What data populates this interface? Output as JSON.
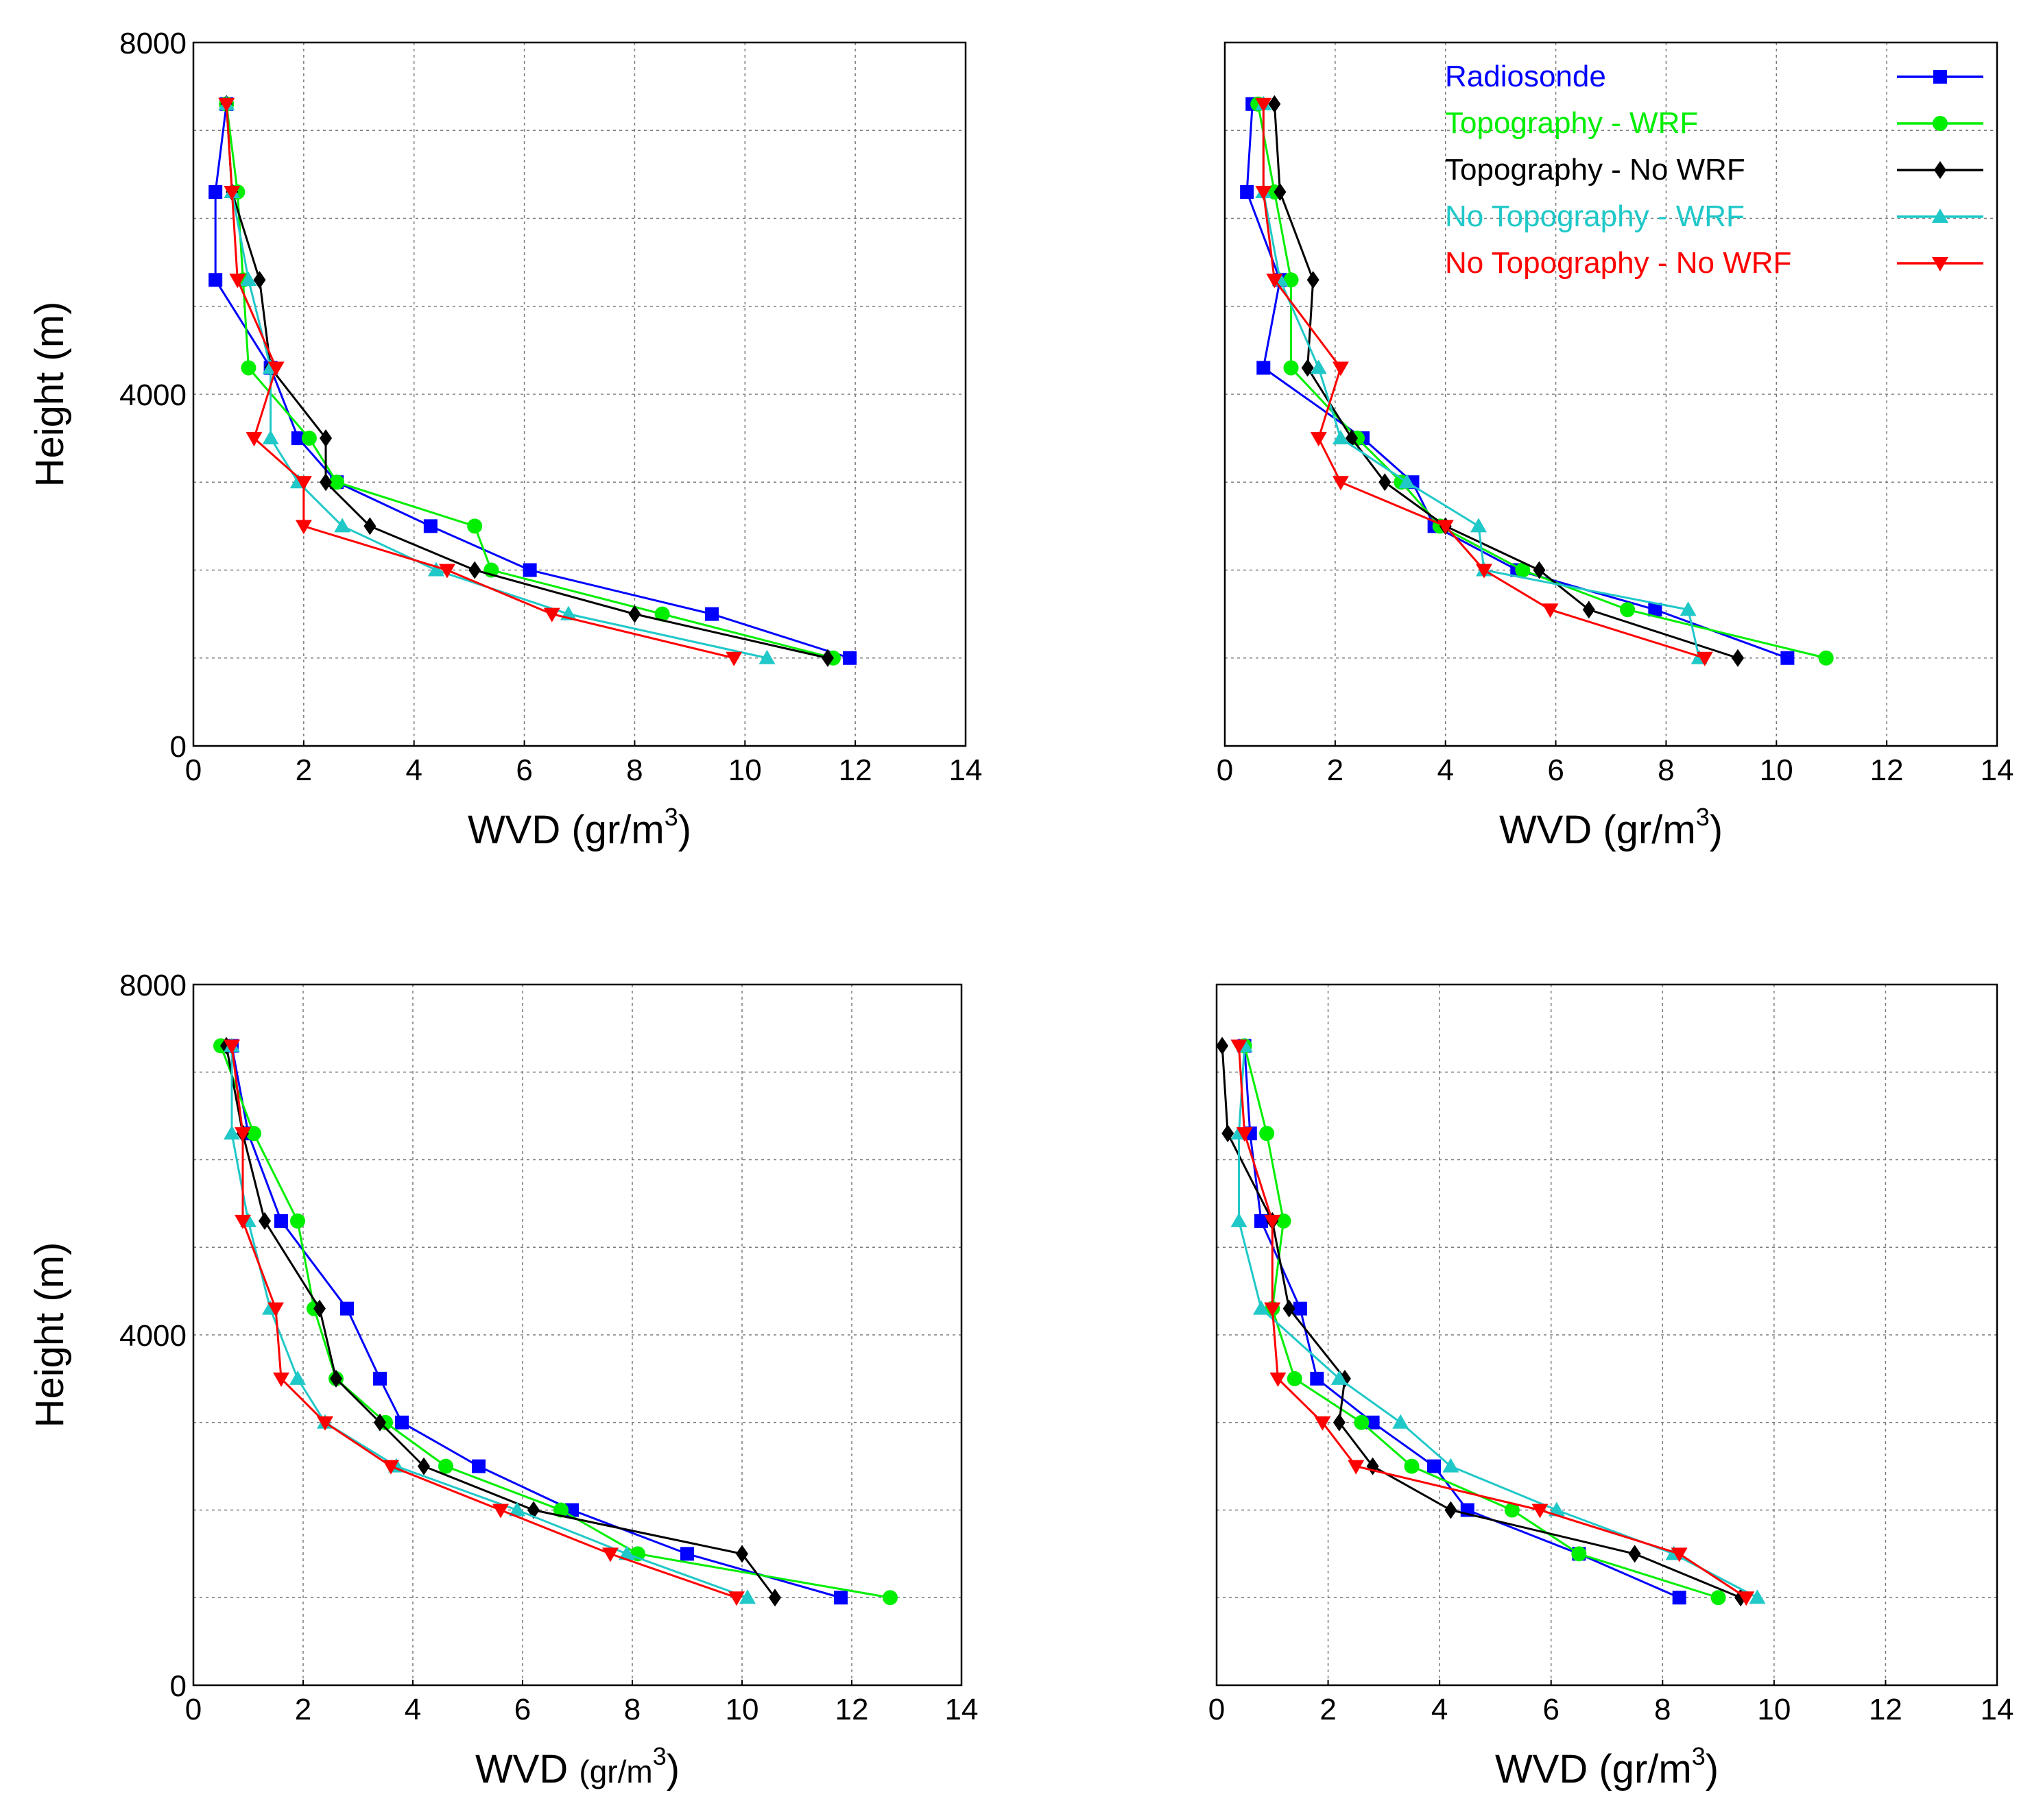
{
  "series_style": [
    {
      "name": "Radiosonde",
      "color": "#0000ff",
      "marker": "square"
    },
    {
      "name": "Topography - WRF",
      "color": "#00ee00",
      "marker": "circle"
    },
    {
      "name": "Topography - No WRF",
      "color": "#000000",
      "marker": "diamond"
    },
    {
      "name": "No Topography - WRF",
      "color": "#20c8c8",
      "marker": "triangle-up"
    },
    {
      "name": "No Topography - No WRF",
      "color": "#ff0000",
      "marker": "triangle-down"
    }
  ],
  "chart_data": [
    {
      "type": "line",
      "title": "",
      "xlabel": "WVD (gr/m",
      "xlabel_sup": "3",
      "xlabel_tail": ")",
      "ylabel": "Height (m)",
      "xlim": [
        0,
        14
      ],
      "ylim": [
        0,
        8000
      ],
      "xticks": [
        0,
        2,
        4,
        6,
        8,
        10,
        12,
        14
      ],
      "xtick_labels": [
        "0",
        "2",
        "4",
        "6",
        "8",
        "10",
        "12",
        "14"
      ],
      "yticks": [
        0,
        4000,
        8000
      ],
      "ytick_labels": [
        "0",
        "4000",
        "8000"
      ],
      "grid": true,
      "legend": false,
      "series": [
        {
          "name": "Radiosonde",
          "points": [
            [
              11.9,
              1000
            ],
            [
              9.4,
              1500
            ],
            [
              6.1,
              2000
            ],
            [
              4.3,
              2500
            ],
            [
              2.6,
              3000
            ],
            [
              1.9,
              3500
            ],
            [
              1.4,
              4300
            ],
            [
              0.4,
              5300
            ],
            [
              0.4,
              6300
            ],
            [
              0.6,
              7300
            ]
          ]
        },
        {
          "name": "Topography - WRF",
          "points": [
            [
              11.6,
              1000
            ],
            [
              8.5,
              1500
            ],
            [
              5.4,
              2000
            ],
            [
              5.1,
              2500
            ],
            [
              2.6,
              3000
            ],
            [
              2.1,
              3500
            ],
            [
              1.0,
              4300
            ],
            [
              0.9,
              5300
            ],
            [
              0.8,
              6300
            ],
            [
              0.6,
              7300
            ]
          ]
        },
        {
          "name": "Topography - No WRF",
          "points": [
            [
              11.5,
              1000
            ],
            [
              8.0,
              1500
            ],
            [
              5.1,
              2000
            ],
            [
              3.2,
              2500
            ],
            [
              2.4,
              3000
            ],
            [
              2.4,
              3500
            ],
            [
              1.4,
              4300
            ],
            [
              1.2,
              5300
            ],
            [
              0.7,
              6300
            ],
            [
              0.6,
              7300
            ]
          ]
        },
        {
          "name": "No Topography - WRF",
          "points": [
            [
              10.4,
              1000
            ],
            [
              6.8,
              1500
            ],
            [
              4.4,
              2000
            ],
            [
              2.7,
              2500
            ],
            [
              1.9,
              3000
            ],
            [
              1.4,
              3500
            ],
            [
              1.4,
              4300
            ],
            [
              1.0,
              5300
            ],
            [
              0.7,
              6300
            ],
            [
              0.6,
              7300
            ]
          ]
        },
        {
          "name": "No Topography - No WRF",
          "points": [
            [
              9.8,
              1000
            ],
            [
              6.5,
              1500
            ],
            [
              4.6,
              2000
            ],
            [
              2.0,
              2500
            ],
            [
              2.0,
              3000
            ],
            [
              1.1,
              3500
            ],
            [
              1.5,
              4300
            ],
            [
              0.8,
              5300
            ],
            [
              0.7,
              6300
            ],
            [
              0.6,
              7300
            ]
          ]
        }
      ]
    },
    {
      "type": "line",
      "title": "",
      "xlabel": "WVD (gr/m",
      "xlabel_sup": "3",
      "xlabel_tail": ")",
      "ylabel": "",
      "xlim": [
        0,
        14
      ],
      "ylim": [
        0,
        8000
      ],
      "xticks": [
        0,
        2,
        4,
        6,
        8,
        10,
        12,
        14
      ],
      "xtick_labels": [
        "0",
        "2",
        "4",
        "6",
        "8",
        "10",
        "12",
        "14"
      ],
      "yticks": [],
      "ytick_labels": [],
      "grid": true,
      "legend": true,
      "legend_position": "top-right",
      "series": [
        {
          "name": "Radiosonde",
          "points": [
            [
              10.2,
              1000
            ],
            [
              7.8,
              1550
            ],
            [
              5.3,
              2000
            ],
            [
              3.8,
              2500
            ],
            [
              3.4,
              3000
            ],
            [
              2.5,
              3500
            ],
            [
              0.7,
              4300
            ],
            [
              1.0,
              5300
            ],
            [
              0.4,
              6300
            ],
            [
              0.5,
              7300
            ]
          ]
        },
        {
          "name": "Topography - WRF",
          "points": [
            [
              10.9,
              1000
            ],
            [
              7.3,
              1550
            ],
            [
              5.4,
              2000
            ],
            [
              3.9,
              2500
            ],
            [
              3.2,
              3000
            ],
            [
              2.4,
              3500
            ],
            [
              1.2,
              4300
            ],
            [
              1.2,
              5300
            ],
            [
              0.9,
              6300
            ],
            [
              0.6,
              7300
            ]
          ]
        },
        {
          "name": "Topography - No WRF",
          "points": [
            [
              9.3,
              1000
            ],
            [
              6.6,
              1550
            ],
            [
              5.7,
              2000
            ],
            [
              4.0,
              2500
            ],
            [
              2.9,
              3000
            ],
            [
              2.3,
              3500
            ],
            [
              1.5,
              4300
            ],
            [
              1.6,
              5300
            ],
            [
              1.0,
              6300
            ],
            [
              0.9,
              7300
            ]
          ]
        },
        {
          "name": "No Topography - WRF",
          "points": [
            [
              8.6,
              1000
            ],
            [
              8.4,
              1550
            ],
            [
              4.7,
              2000
            ],
            [
              4.6,
              2500
            ],
            [
              3.3,
              3000
            ],
            [
              2.1,
              3500
            ],
            [
              1.7,
              4300
            ],
            [
              1.0,
              5300
            ],
            [
              0.7,
              6300
            ],
            [
              0.7,
              7300
            ]
          ]
        },
        {
          "name": "No Topography - No WRF",
          "points": [
            [
              8.7,
              1000
            ],
            [
              5.9,
              1550
            ],
            [
              4.7,
              2000
            ],
            [
              4.0,
              2500
            ],
            [
              2.1,
              3000
            ],
            [
              1.7,
              3500
            ],
            [
              2.1,
              4300
            ],
            [
              0.9,
              5300
            ],
            [
              0.7,
              6300
            ],
            [
              0.7,
              7300
            ]
          ]
        }
      ]
    },
    {
      "type": "line",
      "title": "",
      "xlabel": "WVD",
      "xlabel_unit": "(gr/m",
      "xlabel_sup": "3",
      "xlabel_tail": ")",
      "ylabel": "Height (m)",
      "xlim": [
        0,
        14
      ],
      "ylim": [
        0,
        8000
      ],
      "xticks": [
        0,
        2,
        4,
        6,
        8,
        10,
        12,
        14
      ],
      "xtick_labels": [
        "0",
        "2",
        "4",
        "6",
        "8",
        "10",
        "12",
        "14"
      ],
      "yticks": [
        0,
        4000,
        8000
      ],
      "ytick_labels": [
        "0",
        "4000",
        "8000"
      ],
      "grid": true,
      "legend": false,
      "series": [
        {
          "name": "Radiosonde",
          "points": [
            [
              11.8,
              1000
            ],
            [
              9.0,
              1500
            ],
            [
              6.9,
              2000
            ],
            [
              5.2,
              2500
            ],
            [
              3.8,
              3000
            ],
            [
              3.4,
              3500
            ],
            [
              2.8,
              4300
            ],
            [
              1.6,
              5300
            ],
            [
              1.0,
              6300
            ],
            [
              0.7,
              7300
            ]
          ]
        },
        {
          "name": "Topography - WRF",
          "points": [
            [
              12.7,
              1000
            ],
            [
              8.1,
              1500
            ],
            [
              6.7,
              2000
            ],
            [
              4.6,
              2500
            ],
            [
              3.5,
              3000
            ],
            [
              2.6,
              3500
            ],
            [
              2.2,
              4300
            ],
            [
              1.9,
              5300
            ],
            [
              1.1,
              6300
            ],
            [
              0.5,
              7300
            ]
          ]
        },
        {
          "name": "Topography - No WRF",
          "points": [
            [
              10.6,
              1000
            ],
            [
              10.0,
              1500
            ],
            [
              6.2,
              2000
            ],
            [
              4.2,
              2500
            ],
            [
              3.4,
              3000
            ],
            [
              2.6,
              3500
            ],
            [
              2.3,
              4300
            ],
            [
              1.3,
              5300
            ],
            [
              0.9,
              6300
            ],
            [
              0.6,
              7300
            ]
          ]
        },
        {
          "name": "No Topography - WRF",
          "points": [
            [
              10.1,
              1000
            ],
            [
              7.9,
              1500
            ],
            [
              5.9,
              2000
            ],
            [
              3.7,
              2500
            ],
            [
              2.4,
              3000
            ],
            [
              1.9,
              3500
            ],
            [
              1.4,
              4300
            ],
            [
              1.0,
              5300
            ],
            [
              0.7,
              6300
            ],
            [
              0.7,
              7300
            ]
          ]
        },
        {
          "name": "No Topography - No WRF",
          "points": [
            [
              9.9,
              1000
            ],
            [
              7.6,
              1500
            ],
            [
              5.6,
              2000
            ],
            [
              3.6,
              2500
            ],
            [
              2.4,
              3000
            ],
            [
              1.6,
              3500
            ],
            [
              1.5,
              4300
            ],
            [
              0.9,
              5300
            ],
            [
              0.9,
              6300
            ],
            [
              0.7,
              7300
            ]
          ]
        }
      ]
    },
    {
      "type": "line",
      "title": "",
      "xlabel": "WVD (gr/m",
      "xlabel_sup": "3",
      "xlabel_tail": ")",
      "ylabel": "",
      "xlim": [
        0,
        14
      ],
      "ylim": [
        0,
        8000
      ],
      "xticks": [
        0,
        2,
        4,
        6,
        8,
        10,
        12,
        14
      ],
      "xtick_labels": [
        "0",
        "2",
        "4",
        "6",
        "8",
        "10",
        "12",
        "14"
      ],
      "yticks": [],
      "ytick_labels": [],
      "grid": true,
      "legend": false,
      "series": [
        {
          "name": "Radiosonde",
          "points": [
            [
              8.3,
              1000
            ],
            [
              6.5,
              1500
            ],
            [
              4.5,
              2000
            ],
            [
              3.9,
              2500
            ],
            [
              2.8,
              3000
            ],
            [
              1.8,
              3500
            ],
            [
              1.5,
              4300
            ],
            [
              0.8,
              5300
            ],
            [
              0.6,
              6300
            ],
            [
              0.5,
              7300
            ]
          ]
        },
        {
          "name": "Topography - WRF",
          "points": [
            [
              9.0,
              1000
            ],
            [
              6.5,
              1500
            ],
            [
              5.3,
              2000
            ],
            [
              3.5,
              2500
            ],
            [
              2.6,
              3000
            ],
            [
              1.4,
              3500
            ],
            [
              1.0,
              4300
            ],
            [
              1.2,
              5300
            ],
            [
              0.9,
              6300
            ],
            [
              0.5,
              7300
            ]
          ]
        },
        {
          "name": "Topography - No WRF",
          "points": [
            [
              9.4,
              1000
            ],
            [
              7.5,
              1500
            ],
            [
              4.2,
              2000
            ],
            [
              2.8,
              2500
            ],
            [
              2.2,
              3000
            ],
            [
              2.3,
              3500
            ],
            [
              1.3,
              4300
            ],
            [
              1.0,
              5300
            ],
            [
              0.2,
              6300
            ],
            [
              0.1,
              7300
            ]
          ]
        },
        {
          "name": "No Topography - WRF",
          "points": [
            [
              9.7,
              1000
            ],
            [
              8.2,
              1500
            ],
            [
              6.1,
              2000
            ],
            [
              4.2,
              2500
            ],
            [
              3.3,
              3000
            ],
            [
              2.2,
              3500
            ],
            [
              0.8,
              4300
            ],
            [
              0.4,
              5300
            ],
            [
              0.4,
              6300
            ],
            [
              0.5,
              7300
            ]
          ]
        },
        {
          "name": "No Topography - No WRF",
          "points": [
            [
              9.5,
              1000
            ],
            [
              8.3,
              1500
            ],
            [
              5.8,
              2000
            ],
            [
              2.5,
              2500
            ],
            [
              1.9,
              3000
            ],
            [
              1.1,
              3500
            ],
            [
              1.0,
              4300
            ],
            [
              1.0,
              5300
            ],
            [
              0.5,
              6300
            ],
            [
              0.4,
              7300
            ]
          ]
        }
      ]
    }
  ]
}
